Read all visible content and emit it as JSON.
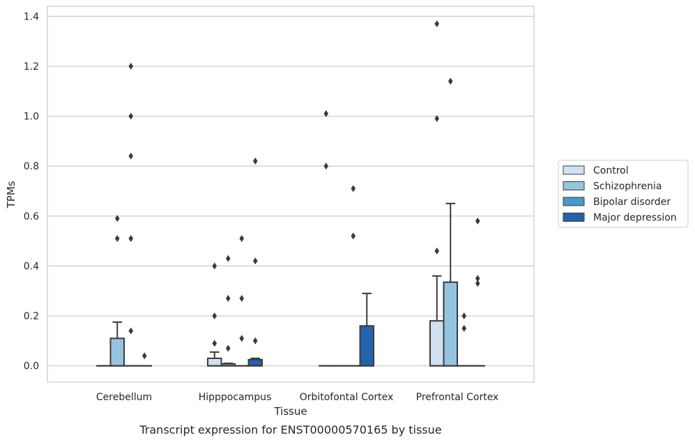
{
  "chart_data": {
    "type": "box",
    "title": "",
    "caption": "Transcript expression for ENST00000570165 by tissue",
    "xlabel": "Tissue",
    "ylabel": "TPMs",
    "ylim": [
      -0.065,
      1.44
    ],
    "yticks": [
      0.0,
      0.2,
      0.4,
      0.6,
      0.8,
      1.0,
      1.2,
      1.4
    ],
    "ytick_labels": [
      "0.0",
      "0.2",
      "0.4",
      "0.6",
      "0.8",
      "1.0",
      "1.2",
      "1.4"
    ],
    "grid": "horizontal",
    "legend_position": "outside-right",
    "categories": [
      "Cerebellum",
      "Hipppocampus",
      "Orbitofontal Cortex",
      "Prefrontal Cortex"
    ],
    "series": [
      {
        "name": "Control",
        "color": "#d0e1f2",
        "boxes": [
          {
            "q1": 0,
            "median": 0,
            "q3": 0,
            "whisker_low": 0,
            "whisker_high": 0,
            "outliers": []
          },
          {
            "q1": 0,
            "median": 0,
            "q3": 0.03,
            "whisker_low": 0,
            "whisker_high": 0.055,
            "outliers": [
              0.09,
              0.2,
              0.4
            ]
          },
          {
            "q1": 0,
            "median": 0,
            "q3": 0,
            "whisker_low": 0,
            "whisker_high": 0,
            "outliers": [
              0.8,
              1.01
            ]
          },
          {
            "q1": 0,
            "median": 0,
            "q3": 0.18,
            "whisker_low": 0,
            "whisker_high": 0.36,
            "outliers": [
              0.46,
              0.99,
              1.37
            ]
          }
        ]
      },
      {
        "name": "Schizophrenia",
        "color": "#94c4df",
        "boxes": [
          {
            "q1": 0,
            "median": 0,
            "q3": 0.11,
            "whisker_low": 0,
            "whisker_high": 0.175,
            "outliers": [
              0.51,
              0.59
            ]
          },
          {
            "q1": 0,
            "median": 0,
            "q3": 0.008,
            "whisker_low": 0,
            "whisker_high": 0.01,
            "outliers": [
              0.07,
              0.27,
              0.43
            ]
          },
          {
            "q1": 0,
            "median": 0,
            "q3": 0,
            "whisker_low": 0,
            "whisker_high": 0,
            "outliers": []
          },
          {
            "q1": 0,
            "median": 0,
            "q3": 0.335,
            "whisker_low": 0,
            "whisker_high": 0.65,
            "outliers": [
              1.14
            ]
          }
        ]
      },
      {
        "name": "Bipolar disorder",
        "color": "#4a98c9",
        "boxes": [
          {
            "q1": 0,
            "median": 0,
            "q3": 0,
            "whisker_low": 0,
            "whisker_high": 0,
            "outliers": [
              0.14,
              0.51,
              0.84,
              1.0,
              1.2
            ]
          },
          {
            "q1": 0,
            "median": 0,
            "q3": 0,
            "whisker_low": 0,
            "whisker_high": 0,
            "outliers": [
              0.11,
              0.27,
              0.51
            ]
          },
          {
            "q1": 0,
            "median": 0,
            "q3": 0,
            "whisker_low": 0,
            "whisker_high": 0,
            "outliers": [
              0.52,
              0.71
            ]
          },
          {
            "q1": 0,
            "median": 0,
            "q3": 0,
            "whisker_low": 0,
            "whisker_high": 0,
            "outliers": [
              0.15,
              0.2
            ]
          }
        ]
      },
      {
        "name": "Major depression",
        "color": "#2164ab",
        "boxes": [
          {
            "q1": 0,
            "median": 0,
            "q3": 0,
            "whisker_low": 0,
            "whisker_high": 0,
            "outliers": [
              0.04
            ]
          },
          {
            "q1": 0,
            "median": 0,
            "q3": 0.025,
            "whisker_low": 0,
            "whisker_high": 0.03,
            "outliers": [
              0.1,
              0.42,
              0.82
            ]
          },
          {
            "q1": 0,
            "median": 0,
            "q3": 0.16,
            "whisker_low": 0,
            "whisker_high": 0.29,
            "outliers": []
          },
          {
            "q1": 0,
            "median": 0,
            "q3": 0,
            "whisker_low": 0,
            "whisker_high": 0,
            "outliers": [
              0.33,
              0.35,
              0.58
            ]
          }
        ]
      }
    ]
  }
}
